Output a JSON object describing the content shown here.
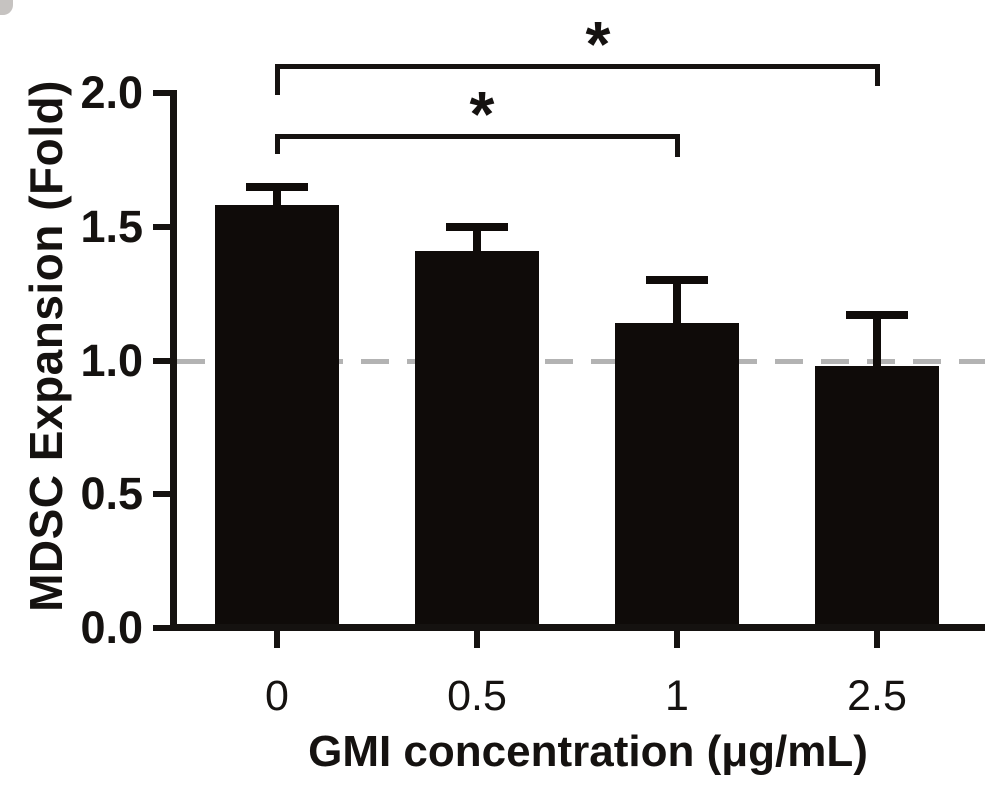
{
  "figure": {
    "background": "#ffffff",
    "text_color": "#151210",
    "line_color": "#151210"
  },
  "chart_data": {
    "type": "bar",
    "title": "",
    "xlabel": "GMI concentration (μg/mL)",
    "ylabel": "MDSC Expansion (Fold)",
    "categories": [
      "0",
      "0.5",
      "1",
      "2.5"
    ],
    "values": [
      1.58,
      1.41,
      1.14,
      0.98
    ],
    "errors_plus": [
      0.07,
      0.09,
      0.16,
      0.19
    ],
    "bar_color": "#0f0b09",
    "ylim": [
      0,
      2.0
    ],
    "yticks": [
      0,
      0.5,
      1,
      1.5,
      2
    ],
    "ytick_labels": [
      "0.0",
      "0.5",
      "1.0",
      "1.5",
      "2.0"
    ],
    "grid": false,
    "legend": false,
    "reference_line": {
      "y": 1.0,
      "style": "dashed",
      "color": "#b3b3b3"
    },
    "significance": [
      {
        "from": "0",
        "to": "2.5",
        "label": "*",
        "y": 2.1
      },
      {
        "from": "0",
        "to": "1",
        "label": "*",
        "y": 1.84
      }
    ]
  }
}
